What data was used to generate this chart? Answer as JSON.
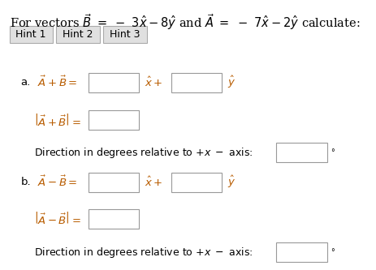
{
  "bg_color": "#ffffff",
  "text_color": "#000000",
  "math_color": "#b85c00",
  "hint_box_color": "#e0e0e0",
  "hint_border_color": "#aaaaaa",
  "input_box_color": "#ffffff",
  "input_border_color": "#999999",
  "font_size_title": 10.5,
  "font_size_body": 9.5,
  "font_size_hint": 9,
  "hint_labels": [
    "Hint 1",
    "Hint 2",
    "Hint 3"
  ],
  "degree_symbol": "°"
}
